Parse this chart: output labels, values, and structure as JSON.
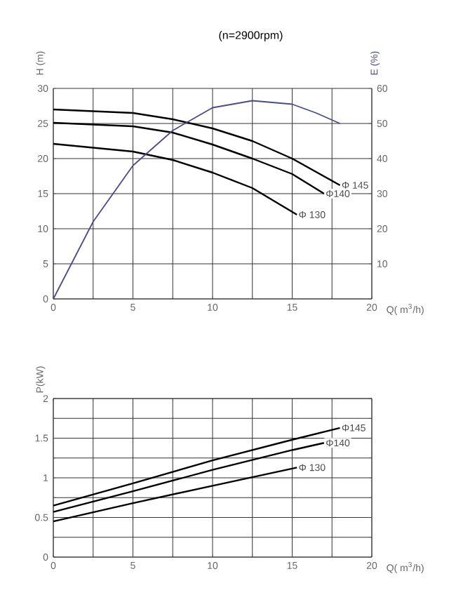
{
  "chart_data": [
    {
      "type": "line",
      "title": "(n=2900rpm)",
      "xlabel": "Q( m$^{3}$/h)",
      "ylabel": "H (m)",
      "y2label": "E (%)",
      "xlim": [
        0,
        20
      ],
      "xticks": [
        0,
        {
          "value": 2.5,
          "label": null
        },
        5,
        {
          "value": 7.5,
          "label": null
        },
        10,
        {
          "value": 12.5,
          "label": null
        },
        15,
        {
          "value": 17.5,
          "label": null
        },
        20
      ],
      "ylim": [
        0,
        30
      ],
      "yticks": [
        0,
        5,
        10,
        15,
        20,
        25,
        30
      ],
      "y2lim": [
        0,
        60
      ],
      "y2ticks": [
        {
          "value": 0,
          "label": null
        },
        10,
        20,
        30,
        40,
        50,
        60
      ],
      "grid": true,
      "marker": "none",
      "line_style": "solid",
      "series": [
        {
          "name": "Φ 145",
          "color": "#000000",
          "x": [
            0,
            5,
            7.5,
            10,
            12.5,
            15,
            18
          ],
          "values": [
            27.0,
            26.5,
            25.6,
            24.3,
            22.5,
            20.0,
            16.2
          ]
        },
        {
          "name": "Φ140",
          "color": "#000000",
          "x": [
            0,
            5,
            7.5,
            10,
            12.5,
            15,
            17
          ],
          "values": [
            25.1,
            24.6,
            23.7,
            22.0,
            20.0,
            17.8,
            15.0
          ]
        },
        {
          "name": "Φ 130",
          "color": "#000000",
          "x": [
            0,
            5,
            7.5,
            10,
            12.5,
            15.3
          ],
          "values": [
            22.1,
            21.0,
            19.8,
            18.0,
            15.8,
            12.0
          ]
        },
        {
          "color": "#4a4a8c",
          "axis": "y2",
          "x": [
            0,
            2.5,
            5,
            7.5,
            10,
            12.5,
            15,
            16.5,
            18
          ],
          "values": [
            0,
            22,
            38,
            48,
            54.5,
            56.5,
            55.5,
            53,
            50
          ]
        }
      ]
    },
    {
      "type": "line",
      "xlabel": "Q( m$^{3}$/h)",
      "ylabel": "P(kW)",
      "xlim": [
        0,
        20
      ],
      "xticks": [
        0,
        {
          "value": 2.5,
          "label": null
        },
        5,
        {
          "value": 7.5,
          "label": null
        },
        10,
        {
          "value": 12.5,
          "label": null
        },
        15,
        {
          "value": 17.5,
          "label": null
        },
        20
      ],
      "ylim": [
        0,
        2
      ],
      "yticks": [
        0,
        {
          "value": 0.25,
          "label": null
        },
        0.5,
        {
          "value": 0.75,
          "label": null
        },
        1,
        {
          "value": 1.25,
          "label": null
        },
        1.5,
        {
          "value": 1.75,
          "label": null
        },
        2
      ],
      "grid": true,
      "marker": "none",
      "line_style": "solid",
      "series": [
        {
          "name": "Φ145",
          "color": "#000000",
          "x": [
            0,
            5,
            10,
            15,
            18
          ],
          "values": [
            0.65,
            0.93,
            1.22,
            1.48,
            1.63
          ]
        },
        {
          "name": "Φ140",
          "color": "#000000",
          "x": [
            0,
            5,
            10,
            15,
            17
          ],
          "values": [
            0.57,
            0.83,
            1.1,
            1.35,
            1.44
          ]
        },
        {
          "name": "Φ 130",
          "color": "#000000",
          "x": [
            0,
            5,
            10,
            15.3
          ],
          "values": [
            0.45,
            0.68,
            0.9,
            1.13
          ]
        }
      ]
    }
  ]
}
